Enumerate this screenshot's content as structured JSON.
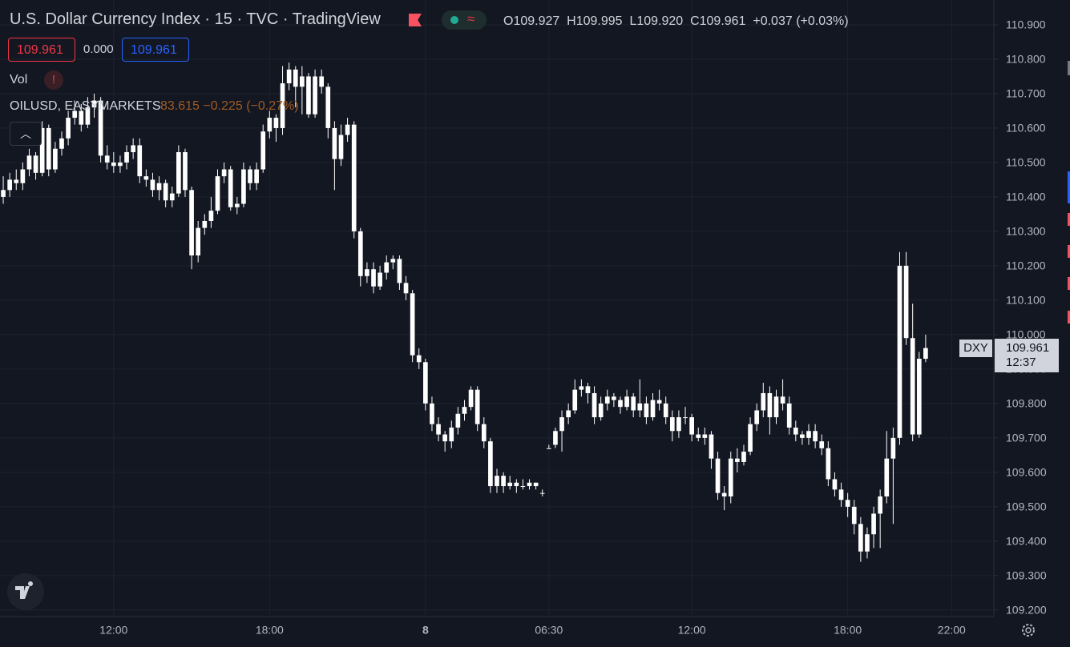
{
  "header": {
    "title": "U.S. Dollar Currency Index · 15 · TVC · TradingView",
    "open": "O109.927",
    "high": "H109.995",
    "low": "L109.920",
    "close": "C109.961",
    "change": "+0.037 (+0.03%)",
    "badges": [
      "109.961",
      "0.000",
      "109.961"
    ],
    "vol": "Vol",
    "compare_symbol": "OILUSD, EASYMARKETS",
    "compare_values": "83.615 −0.225 (−0.27%)"
  },
  "chart_data": {
    "type": "candlestick",
    "categories": [
      null,
      null,
      null,
      null,
      null,
      null,
      null,
      null,
      null,
      null,
      null,
      null,
      null,
      null,
      null,
      null,
      null,
      "12:00",
      null,
      null,
      null,
      null,
      null,
      null,
      null,
      null,
      null,
      null,
      null,
      null,
      null,
      null,
      null,
      null,
      null,
      null,
      null,
      null,
      null,
      null,
      null,
      "18:00",
      null,
      null,
      null,
      null,
      null,
      null,
      null,
      null,
      null,
      null,
      null,
      null,
      null,
      null,
      null,
      null,
      null,
      null,
      null,
      null,
      null,
      null,
      null,
      "8",
      null,
      null,
      null,
      null,
      null,
      null,
      null,
      null,
      null,
      null,
      null,
      null,
      null,
      null,
      null,
      null,
      null,
      null,
      "06:30",
      null,
      null,
      null,
      null,
      null,
      null,
      null,
      null,
      null,
      null,
      null,
      null,
      null,
      null,
      null,
      null,
      null,
      null,
      null,
      null,
      null,
      "12:00",
      null,
      null,
      null,
      null,
      null,
      null,
      null,
      null,
      null,
      null,
      null,
      null,
      null,
      null,
      null,
      null,
      null,
      null,
      null,
      null,
      null,
      null,
      null,
      "18:00",
      null,
      null,
      null,
      null,
      null,
      null,
      null,
      null,
      null,
      null,
      null,
      null,
      null,
      null,
      null,
      "22:00",
      null,
      null,
      null,
      null,
      null,
      null
    ],
    "ohlc": [
      [
        110.4,
        110.46,
        110.38,
        110.42
      ],
      [
        110.42,
        110.47,
        110.4,
        110.45
      ],
      [
        110.45,
        110.48,
        110.42,
        110.44
      ],
      [
        110.44,
        110.5,
        110.42,
        110.48
      ],
      [
        110.48,
        110.54,
        110.46,
        110.52
      ],
      [
        110.52,
        110.53,
        110.45,
        110.47
      ],
      [
        110.47,
        110.62,
        110.46,
        110.6
      ],
      [
        110.6,
        110.61,
        110.46,
        110.48
      ],
      [
        110.48,
        110.56,
        110.47,
        110.54
      ],
      [
        110.54,
        110.59,
        110.52,
        110.57
      ],
      [
        110.57,
        110.65,
        110.55,
        110.63
      ],
      [
        110.63,
        110.68,
        110.61,
        110.65
      ],
      [
        110.65,
        110.67,
        110.59,
        110.61
      ],
      [
        110.61,
        110.69,
        110.6,
        110.66
      ],
      [
        110.66,
        110.7,
        110.63,
        110.68
      ],
      [
        110.68,
        110.69,
        110.5,
        110.52
      ],
      [
        110.52,
        110.55,
        110.48,
        110.5
      ],
      [
        110.5,
        110.53,
        110.47,
        110.49
      ],
      [
        110.49,
        110.52,
        110.47,
        110.5
      ],
      [
        110.5,
        110.55,
        110.48,
        110.53
      ],
      [
        110.53,
        110.57,
        110.51,
        110.55
      ],
      [
        110.55,
        110.57,
        110.44,
        110.46
      ],
      [
        110.46,
        110.48,
        110.43,
        110.45
      ],
      [
        110.45,
        110.47,
        110.4,
        110.42
      ],
      [
        110.42,
        110.46,
        110.39,
        110.44
      ],
      [
        110.44,
        110.45,
        110.37,
        110.39
      ],
      [
        110.39,
        110.43,
        110.37,
        110.41
      ],
      [
        110.41,
        110.55,
        110.4,
        110.53
      ],
      [
        110.53,
        110.54,
        110.4,
        110.42
      ],
      [
        110.42,
        110.43,
        110.19,
        110.23
      ],
      [
        110.23,
        110.33,
        110.21,
        110.31
      ],
      [
        110.31,
        110.35,
        110.29,
        110.33
      ],
      [
        110.33,
        110.4,
        110.31,
        110.36
      ],
      [
        110.36,
        110.48,
        110.35,
        110.46
      ],
      [
        110.46,
        110.5,
        110.44,
        110.48
      ],
      [
        110.48,
        110.49,
        110.36,
        110.37
      ],
      [
        110.37,
        110.4,
        110.35,
        110.38
      ],
      [
        110.38,
        110.5,
        110.37,
        110.48
      ],
      [
        110.48,
        110.49,
        110.42,
        110.44
      ],
      [
        110.44,
        110.5,
        110.42,
        110.48
      ],
      [
        110.48,
        110.61,
        110.47,
        110.59
      ],
      [
        110.59,
        110.65,
        110.57,
        110.63
      ],
      [
        110.63,
        110.64,
        110.56,
        110.6
      ],
      [
        110.6,
        110.78,
        110.58,
        110.73
      ],
      [
        110.73,
        110.79,
        110.71,
        110.77
      ],
      [
        110.77,
        110.78,
        110.66,
        110.72
      ],
      [
        110.72,
        110.78,
        110.64,
        110.75
      ],
      [
        110.75,
        110.76,
        110.63,
        110.64
      ],
      [
        110.64,
        110.77,
        110.63,
        110.75
      ],
      [
        110.75,
        110.77,
        110.7,
        110.72
      ],
      [
        110.72,
        110.73,
        110.57,
        110.6
      ],
      [
        110.6,
        110.62,
        110.42,
        110.51
      ],
      [
        110.51,
        110.61,
        110.49,
        110.58
      ],
      [
        110.58,
        110.63,
        110.56,
        110.61
      ],
      [
        110.61,
        110.62,
        110.28,
        110.3
      ],
      [
        110.3,
        110.31,
        110.14,
        110.17
      ],
      [
        110.17,
        110.21,
        110.15,
        110.19
      ],
      [
        110.19,
        110.21,
        110.12,
        110.14
      ],
      [
        110.14,
        110.2,
        110.13,
        110.18
      ],
      [
        110.18,
        110.23,
        110.16,
        110.21
      ],
      [
        110.21,
        110.23,
        110.19,
        110.22
      ],
      [
        110.22,
        110.23,
        110.13,
        110.15
      ],
      [
        110.15,
        110.17,
        110.1,
        110.12
      ],
      [
        110.12,
        110.13,
        109.92,
        109.94
      ],
      [
        109.94,
        109.96,
        109.9,
        109.92
      ],
      [
        109.92,
        109.93,
        109.78,
        109.8
      ],
      [
        109.8,
        109.82,
        109.72,
        109.74
      ],
      [
        109.74,
        109.76,
        109.69,
        109.71
      ],
      [
        109.71,
        109.72,
        109.66,
        109.69
      ],
      [
        109.69,
        109.75,
        109.67,
        109.73
      ],
      [
        109.73,
        109.79,
        109.71,
        109.77
      ],
      [
        109.77,
        109.81,
        109.75,
        109.79
      ],
      [
        109.79,
        109.85,
        109.78,
        109.84
      ],
      [
        109.84,
        109.85,
        109.72,
        109.74
      ],
      [
        109.74,
        109.76,
        109.67,
        109.69
      ],
      [
        109.69,
        109.7,
        109.54,
        109.56
      ],
      [
        109.56,
        109.61,
        109.54,
        109.59
      ],
      [
        109.59,
        109.6,
        109.54,
        109.56
      ],
      [
        109.56,
        109.59,
        109.55,
        109.57
      ],
      [
        109.57,
        109.58,
        109.54,
        109.56
      ],
      [
        109.56,
        109.58,
        109.55,
        109.56
      ],
      [
        109.56,
        109.58,
        109.55,
        109.57
      ],
      [
        109.57,
        109.57,
        109.55,
        109.56
      ],
      [
        109.54,
        109.55,
        109.53,
        109.54
      ],
      [
        109.67,
        109.68,
        109.67,
        109.67
      ],
      [
        109.68,
        109.73,
        109.67,
        109.72
      ],
      [
        109.72,
        109.78,
        109.66,
        109.76
      ],
      [
        109.76,
        109.8,
        109.74,
        109.78
      ],
      [
        109.78,
        109.87,
        109.77,
        109.84
      ],
      [
        109.84,
        109.87,
        109.82,
        109.85
      ],
      [
        109.85,
        109.86,
        109.8,
        109.83
      ],
      [
        109.83,
        109.85,
        109.74,
        109.76
      ],
      [
        109.76,
        109.82,
        109.75,
        109.8
      ],
      [
        109.8,
        109.84,
        109.78,
        109.82
      ],
      [
        109.82,
        109.83,
        109.79,
        109.81
      ],
      [
        109.81,
        109.82,
        109.77,
        109.79
      ],
      [
        109.79,
        109.84,
        109.78,
        109.82
      ],
      [
        109.82,
        109.83,
        109.76,
        109.78
      ],
      [
        109.78,
        109.87,
        109.76,
        109.8
      ],
      [
        109.8,
        109.82,
        109.74,
        109.76
      ],
      [
        109.76,
        109.83,
        109.75,
        109.81
      ],
      [
        109.81,
        109.84,
        109.78,
        109.8
      ],
      [
        109.8,
        109.82,
        109.74,
        109.76
      ],
      [
        109.76,
        109.78,
        109.69,
        109.72
      ],
      [
        109.72,
        109.78,
        109.7,
        109.76
      ],
      [
        109.76,
        109.79,
        109.74,
        109.76
      ],
      [
        109.76,
        109.77,
        109.69,
        109.71
      ],
      [
        109.71,
        109.73,
        109.69,
        109.7
      ],
      [
        109.7,
        109.73,
        109.68,
        109.71
      ],
      [
        109.71,
        109.72,
        109.61,
        109.64
      ],
      [
        109.64,
        109.66,
        109.52,
        109.54
      ],
      [
        109.54,
        109.56,
        109.49,
        109.53
      ],
      [
        109.53,
        109.66,
        109.51,
        109.64
      ],
      [
        109.64,
        109.67,
        109.6,
        109.63
      ],
      [
        109.63,
        109.68,
        109.62,
        109.66
      ],
      [
        109.66,
        109.76,
        109.65,
        109.74
      ],
      [
        109.74,
        109.8,
        109.72,
        109.78
      ],
      [
        109.78,
        109.86,
        109.76,
        109.83
      ],
      [
        109.83,
        109.85,
        109.71,
        109.76
      ],
      [
        109.76,
        109.84,
        109.74,
        109.82
      ],
      [
        109.82,
        109.87,
        109.78,
        109.8
      ],
      [
        109.8,
        109.82,
        109.71,
        109.73
      ],
      [
        109.73,
        109.75,
        109.69,
        109.71
      ],
      [
        109.71,
        109.72,
        109.68,
        109.7
      ],
      [
        109.7,
        109.74,
        109.68,
        109.72
      ],
      [
        109.72,
        109.74,
        109.67,
        109.69
      ],
      [
        109.69,
        109.71,
        109.65,
        109.67
      ],
      [
        109.67,
        109.69,
        109.56,
        109.58
      ],
      [
        109.58,
        109.6,
        109.53,
        109.55
      ],
      [
        109.55,
        109.57,
        109.5,
        109.52
      ],
      [
        109.52,
        109.54,
        109.47,
        109.5
      ],
      [
        109.5,
        109.52,
        109.42,
        109.45
      ],
      [
        109.45,
        109.47,
        109.34,
        109.37
      ],
      [
        109.37,
        109.44,
        109.35,
        109.42
      ],
      [
        109.42,
        109.5,
        109.38,
        109.48
      ],
      [
        109.48,
        109.55,
        109.38,
        109.53
      ],
      [
        109.53,
        109.72,
        109.51,
        109.64
      ],
      [
        109.64,
        109.73,
        109.45,
        109.7
      ],
      [
        109.7,
        110.24,
        109.68,
        110.2
      ],
      [
        110.2,
        110.24,
        109.97,
        109.99
      ],
      [
        109.99,
        110.09,
        109.69,
        109.71
      ],
      [
        109.71,
        109.95,
        109.7,
        109.93
      ],
      [
        109.93,
        110.0,
        109.92,
        109.961
      ],
      null,
      null,
      null,
      null,
      null,
      null,
      null,
      null,
      null,
      null
    ],
    "color": "#ffffff",
    "ylim": [
      109.181,
      110.972
    ],
    "yticks": [
      {
        "value": 110.9,
        "label": "110.900"
      },
      {
        "value": 110.8,
        "label": "110.800"
      },
      {
        "value": 110.7,
        "label": "110.700"
      },
      {
        "value": 110.6,
        "label": "110.600"
      },
      {
        "value": 110.5,
        "label": "110.500"
      },
      {
        "value": 110.4,
        "label": "110.400"
      },
      {
        "value": 110.3,
        "label": "110.300"
      },
      {
        "value": 110.2,
        "label": "110.200"
      },
      {
        "value": 110.1,
        "label": "110.100"
      },
      {
        "value": 110.0,
        "label": "110.000"
      },
      {
        "value": 109.9,
        "label": "109.900"
      },
      {
        "value": 109.8,
        "label": "109.800"
      },
      {
        "value": 109.7,
        "label": "109.700"
      },
      {
        "value": 109.6,
        "label": "109.600"
      },
      {
        "value": 109.5,
        "label": "109.500"
      },
      {
        "value": 109.4,
        "label": "109.400"
      },
      {
        "value": 109.3,
        "label": "109.300"
      },
      {
        "value": 109.2,
        "label": "109.200"
      }
    ],
    "grid": true,
    "price_tag": {
      "symbol": "DXY",
      "price": "109.961",
      "countdown": "12:37"
    }
  }
}
